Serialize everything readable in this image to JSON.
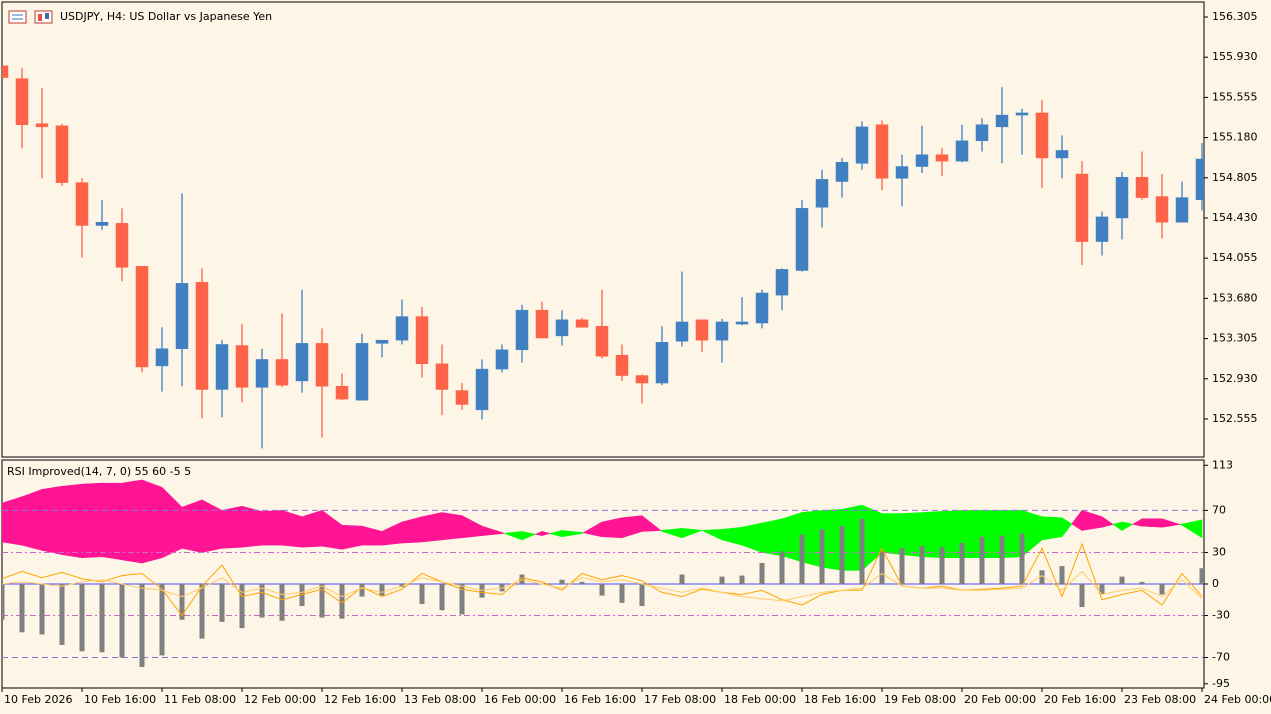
{
  "chart_data": [
    {
      "type": "candlestick",
      "title": "USDJPY, H4:  US Dollar vs Japanese Yen",
      "categories": [
        "10 Feb 2026",
        null,
        null,
        null,
        "10 Feb 16:00",
        null,
        null,
        null,
        "11 Feb 08:00",
        null,
        null,
        null,
        "12 Feb 00:00",
        null,
        null,
        null,
        "12 Feb 16:00",
        null,
        null,
        null,
        "13 Feb 08:00",
        null,
        null,
        null,
        "16 Feb 00:00",
        null,
        null,
        null,
        "16 Feb 16:00",
        null,
        null,
        null,
        "17 Feb 08:00",
        null,
        null,
        null,
        "18 Feb 00:00",
        null,
        null,
        null,
        "18 Feb 16:00",
        null,
        null,
        null,
        "19 Feb 08:00",
        null,
        null,
        null,
        "20 Feb 00:00",
        null,
        null,
        null,
        "20 Feb 16:00",
        null,
        null,
        null,
        "23 Feb 08:00",
        null,
        null,
        null,
        "24 Feb 00:00"
      ],
      "open": [
        155.85,
        155.73,
        155.31,
        155.29,
        154.76,
        154.36,
        154.38,
        153.98,
        153.05,
        153.21,
        153.83,
        152.83,
        153.24,
        152.85,
        153.11,
        152.91,
        153.26,
        152.86,
        152.73,
        153.26,
        153.29,
        153.51,
        153.07,
        152.82,
        152.64,
        153.02,
        153.2,
        153.57,
        153.33,
        153.48,
        153.42,
        153.15,
        152.96,
        152.89,
        153.28,
        153.48,
        153.29,
        153.44,
        153.45,
        153.71,
        153.94,
        154.53,
        154.77,
        154.94,
        155.3,
        154.8,
        154.91,
        155.02,
        154.96,
        155.15,
        155.28,
        155.39,
        155.41,
        154.99,
        154.84,
        154.21,
        154.43,
        154.81,
        154.63,
        154.39,
        154.6
      ],
      "high": [
        155.85,
        155.83,
        155.64,
        155.31,
        154.8,
        154.6,
        154.52,
        153.98,
        153.41,
        154.66,
        153.96,
        153.29,
        153.44,
        153.21,
        153.54,
        153.76,
        153.4,
        152.98,
        153.35,
        153.29,
        153.67,
        153.6,
        153.25,
        152.89,
        153.11,
        153.25,
        153.62,
        153.65,
        153.57,
        153.5,
        153.76,
        153.25,
        152.97,
        153.42,
        153.93,
        153.48,
        153.49,
        153.69,
        153.76,
        153.96,
        154.6,
        154.88,
        154.99,
        155.33,
        155.34,
        155.02,
        155.29,
        155.08,
        155.3,
        155.36,
        155.65,
        155.45,
        155.53,
        155.2,
        154.96,
        154.49,
        154.86,
        155.05,
        154.84,
        154.77,
        155.13
      ],
      "low": [
        155.74,
        155.08,
        154.8,
        154.73,
        154.06,
        154.32,
        153.84,
        152.99,
        152.81,
        152.86,
        152.56,
        152.57,
        152.71,
        152.28,
        152.85,
        152.8,
        152.38,
        152.73,
        152.73,
        153.13,
        153.25,
        152.94,
        152.59,
        152.64,
        152.55,
        152.99,
        153.08,
        153.31,
        153.24,
        153.41,
        153.12,
        152.91,
        152.7,
        152.87,
        153.23,
        153.18,
        153.08,
        153.43,
        153.4,
        153.57,
        153.93,
        154.34,
        154.62,
        154.88,
        154.69,
        154.54,
        154.85,
        154.82,
        154.95,
        155.05,
        154.94,
        155.02,
        154.71,
        154.8,
        153.99,
        154.08,
        154.23,
        154.6,
        154.24,
        154.39,
        154.5
      ],
      "close": [
        155.74,
        155.3,
        155.28,
        154.76,
        154.36,
        154.39,
        153.97,
        153.04,
        153.21,
        153.82,
        152.83,
        153.25,
        152.85,
        153.11,
        152.87,
        153.26,
        152.86,
        152.74,
        153.26,
        153.29,
        153.51,
        153.07,
        152.83,
        152.69,
        153.02,
        153.2,
        153.57,
        153.31,
        153.48,
        153.41,
        153.14,
        152.96,
        152.89,
        153.27,
        153.46,
        153.29,
        153.46,
        153.46,
        153.73,
        153.95,
        154.52,
        154.79,
        154.95,
        155.28,
        154.8,
        154.91,
        155.02,
        154.96,
        155.15,
        155.3,
        155.39,
        155.41,
        154.99,
        155.06,
        154.21,
        154.44,
        154.81,
        154.62,
        154.39,
        154.62,
        154.98
      ],
      "up_color": "#4180c0",
      "down_color": "#ff6347",
      "ylim": [
        152.2,
        156.445
      ],
      "yticks": [
        156.305,
        {
          "value": 155.93,
          "label": "155.930"
        },
        155.555,
        {
          "value": 155.18,
          "label": "155.180"
        },
        154.805,
        {
          "value": 154.43,
          "label": "154.430"
        },
        154.055,
        {
          "value": 153.68,
          "label": "153.680"
        },
        153.305,
        {
          "value": 152.93,
          "label": "152.930"
        },
        152.555
      ]
    },
    {
      "type": "indicator",
      "title": "RSI Improved(14, 7, 0) 55 60 -5 5",
      "ylim": [
        -99,
        118
      ],
      "yticks": [
        113,
        70,
        30,
        0,
        -30,
        -70,
        -95
      ],
      "levels": [
        {
          "value": 70,
          "color": "#9370db",
          "dash": "6,4"
        },
        {
          "value": 30,
          "color": "#cc66cc",
          "dash": "6,3,2,3"
        },
        {
          "value": 0,
          "color": "#4a4aff",
          "dash": "none"
        },
        {
          "value": -30,
          "color": "#cc66cc",
          "dash": "6,3,2,3"
        },
        {
          "value": -70,
          "color": "#9370db",
          "dash": "6,4"
        }
      ],
      "series": [
        {
          "style": "cloud",
          "color": "#ff1493",
          "values": [
            77,
            83,
            90,
            93,
            95,
            96,
            96,
            99,
            92,
            73,
            80,
            70,
            74,
            69,
            70,
            64,
            70,
            56,
            55,
            50,
            59,
            64,
            68,
            65,
            55,
            49,
            42,
            50,
            45,
            48,
            59,
            63,
            65,
            50,
            44,
            51,
            42,
            37,
            30,
            27,
            21,
            16,
            13,
            13,
            30,
            28,
            26,
            25,
            25,
            25,
            25,
            26,
            42,
            45,
            70,
            64,
            51,
            62,
            62,
            56,
            44
          ]
        },
        {
          "style": "cloud",
          "color": "#00ff00",
          "values": [
            40,
            37,
            32,
            28,
            25,
            26,
            23,
            20,
            25,
            34,
            30,
            34,
            35,
            37,
            37,
            35,
            36,
            33,
            37,
            37,
            39,
            40,
            42,
            44,
            46,
            48,
            50,
            46,
            51,
            49,
            45,
            44,
            50,
            51,
            53,
            51,
            52,
            54,
            58,
            62,
            68,
            70,
            71,
            75,
            67,
            67,
            68,
            69,
            70,
            70,
            70,
            70,
            64,
            63,
            51,
            54,
            59,
            55,
            54,
            57,
            61
          ]
        },
        {
          "style": "histogram",
          "color": "#808080",
          "values": [
            -34,
            -46,
            -48,
            -58,
            -64,
            -65,
            -70,
            -79,
            -68,
            -34,
            -52,
            -36,
            -42,
            -32,
            -35,
            -21,
            -32,
            -33,
            -12,
            -11,
            -3,
            -19,
            -25,
            -29,
            -13,
            -7,
            9,
            0,
            4,
            2,
            -11,
            -18,
            -21,
            0,
            9,
            0,
            7,
            8,
            20,
            31,
            47,
            52,
            55,
            62,
            31,
            34,
            36,
            35,
            39,
            45,
            46,
            48,
            13,
            17,
            -22,
            -10,
            7,
            2,
            -10,
            0,
            15
          ]
        },
        {
          "style": "line",
          "color": "#ffa500",
          "values": [
            5,
            12,
            6,
            11,
            5,
            2,
            8,
            10,
            -5,
            -30,
            -2,
            18,
            -12,
            -8,
            -15,
            -10,
            -5,
            -18,
            -3,
            -12,
            -5,
            10,
            2,
            -5,
            -8,
            -10,
            6,
            2,
            -6,
            10,
            4,
            8,
            3,
            -8,
            -12,
            -5,
            -8,
            -10,
            -6,
            -15,
            -20,
            -10,
            -6,
            -6,
            34,
            -2,
            -4,
            -2,
            -6,
            -5,
            -4,
            -2,
            34,
            -12,
            38,
            -15,
            -10,
            -6,
            -20,
            10,
            -12
          ]
        },
        {
          "style": "line",
          "color": "#ffcc66",
          "values": [
            0,
            2,
            0,
            -2,
            2,
            4,
            0,
            -4,
            -6,
            -12,
            -4,
            6,
            -8,
            -4,
            -10,
            -8,
            -2,
            -12,
            -4,
            -8,
            -2,
            6,
            2,
            -2,
            -6,
            -4,
            4,
            0,
            -4,
            6,
            2,
            4,
            0,
            -4,
            -8,
            -4,
            -8,
            -12,
            -14,
            -16,
            -12,
            -8,
            -6,
            -4,
            10,
            -2,
            -4,
            -4,
            -6,
            -6,
            -5,
            -4,
            8,
            -6,
            12,
            -10,
            -6,
            -4,
            -12,
            4,
            -14
          ]
        }
      ]
    }
  ]
}
